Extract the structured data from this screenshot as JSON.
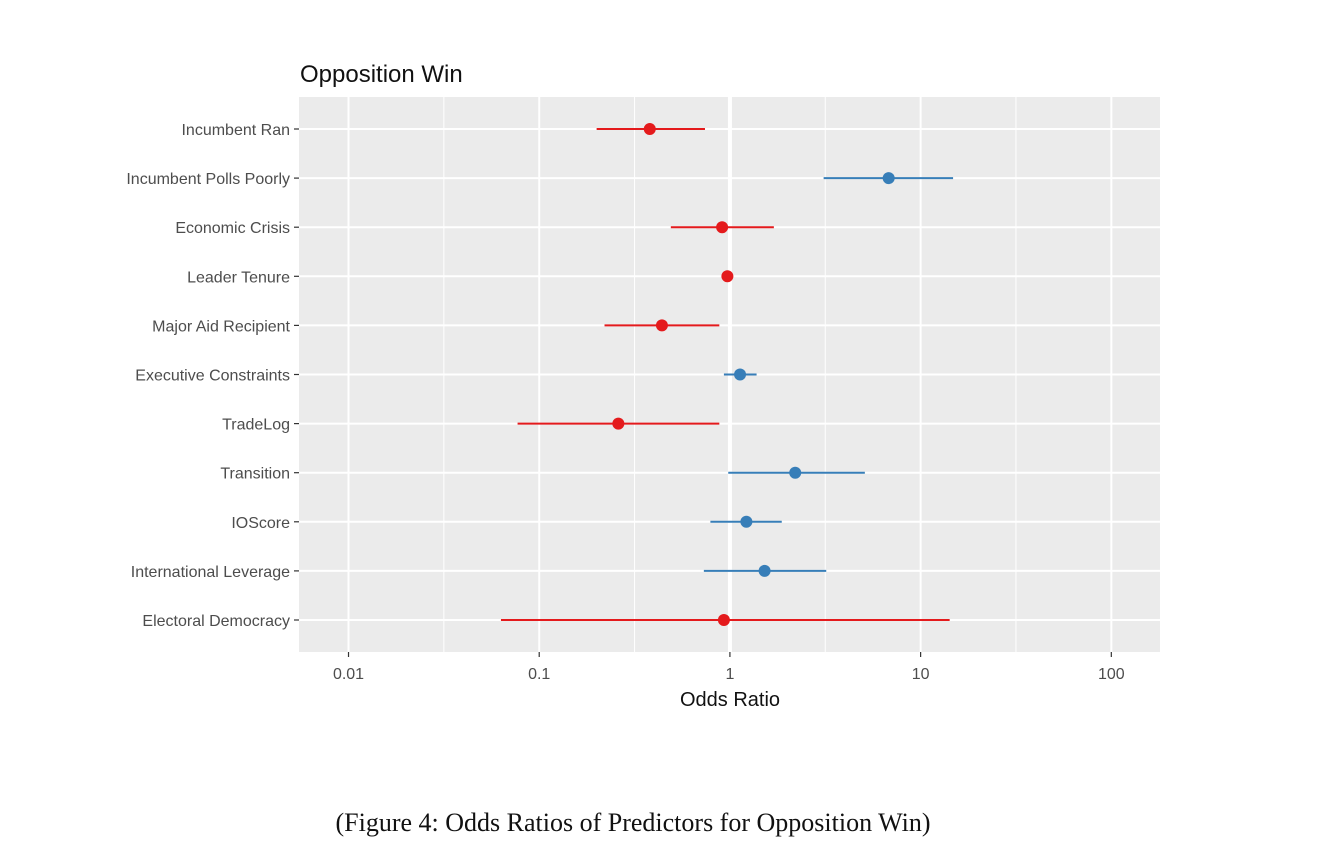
{
  "chart_data": {
    "type": "scatter",
    "subtype": "forest-plot",
    "title": "Opposition Win",
    "xlabel": "Odds Ratio",
    "ylabel": "",
    "x_scale": "log10",
    "xlim": [
      0.0055,
      180
    ],
    "x_ticks": [
      0.01,
      0.1,
      1,
      10,
      100
    ],
    "x_tick_labels": [
      "0.01",
      "0.1",
      "1",
      "10",
      "100"
    ],
    "reference_line": 1,
    "grid": true,
    "legend": "none",
    "colors": {
      "negative": "#e41a1c",
      "positive": "#377eb8",
      "panel": "#ebebeb",
      "grid": "#ffffff"
    },
    "predictors": [
      {
        "label": "Incumbent Ran",
        "estimate": 0.38,
        "lower": 0.2,
        "upper": 0.74,
        "direction": "negative"
      },
      {
        "label": "Incumbent Polls Poorly",
        "estimate": 6.8,
        "lower": 3.1,
        "upper": 14.8,
        "direction": "positive"
      },
      {
        "label": "Economic Crisis",
        "estimate": 0.91,
        "lower": 0.49,
        "upper": 1.7,
        "direction": "negative"
      },
      {
        "label": "Leader Tenure",
        "estimate": 0.97,
        "lower": 0.94,
        "upper": 1.0,
        "direction": "negative"
      },
      {
        "label": "Major Aid Recipient",
        "estimate": 0.44,
        "lower": 0.22,
        "upper": 0.88,
        "direction": "negative"
      },
      {
        "label": "Executive Constraints",
        "estimate": 1.13,
        "lower": 0.93,
        "upper": 1.38,
        "direction": "positive"
      },
      {
        "label": "TradeLog",
        "estimate": 0.26,
        "lower": 0.077,
        "upper": 0.88,
        "direction": "negative"
      },
      {
        "label": "Transition",
        "estimate": 2.2,
        "lower": 0.98,
        "upper": 5.1,
        "direction": "positive"
      },
      {
        "label": "IOScore",
        "estimate": 1.22,
        "lower": 0.79,
        "upper": 1.87,
        "direction": "positive"
      },
      {
        "label": "International Leverage",
        "estimate": 1.52,
        "lower": 0.73,
        "upper": 3.2,
        "direction": "positive"
      },
      {
        "label": "Electoral Democracy",
        "estimate": 0.93,
        "lower": 0.063,
        "upper": 14.2,
        "direction": "negative"
      }
    ]
  },
  "caption": "(Figure 4: Odds Ratios of Predictors for Opposition Win)"
}
